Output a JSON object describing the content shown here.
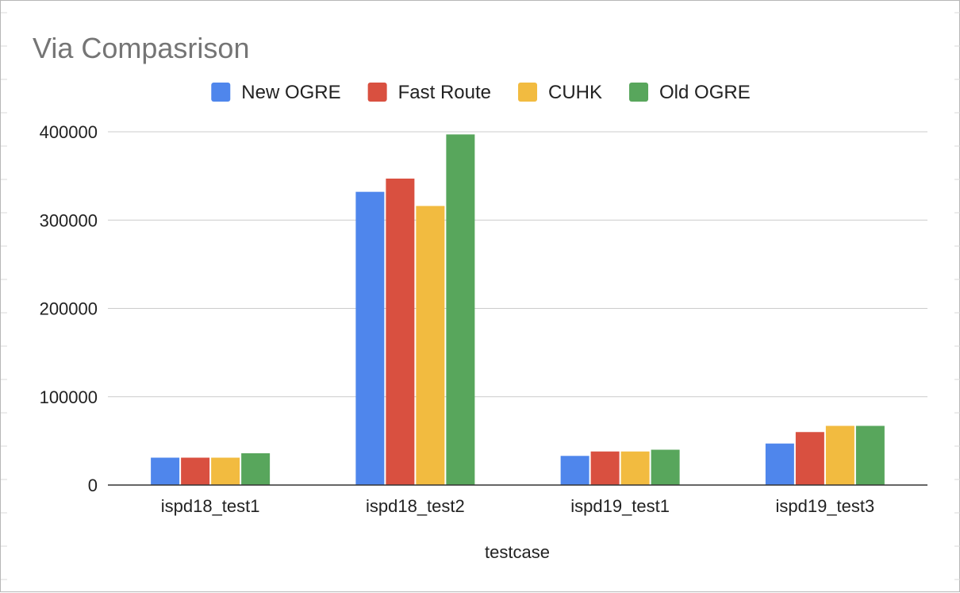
{
  "chart_data": {
    "type": "bar",
    "title": "Via Compasrison",
    "xlabel": "testcase",
    "ylabel": "",
    "categories": [
      "ispd18_test1",
      "ispd18_test2",
      "ispd19_test1",
      "ispd19_test3"
    ],
    "series": [
      {
        "name": "New OGRE",
        "color": "#4f86ec",
        "values": [
          31000,
          332000,
          33000,
          47000
        ]
      },
      {
        "name": "Fast Route",
        "color": "#d95040",
        "values": [
          31000,
          347000,
          38000,
          60000
        ]
      },
      {
        "name": "CUHK",
        "color": "#f2bb40",
        "values": [
          31000,
          316000,
          38000,
          67000
        ]
      },
      {
        "name": "Old OGRE",
        "color": "#58a65c",
        "values": [
          36000,
          397000,
          40000,
          67000
        ]
      }
    ],
    "ylim": [
      0,
      400000
    ],
    "yticks": [
      0,
      100000,
      200000,
      300000,
      400000
    ],
    "ytick_labels": [
      "0",
      "100000",
      "200000",
      "300000",
      "400000"
    ],
    "grid": true,
    "legend_position": "top-center",
    "colors": {
      "title": "#757575",
      "gridline": "#cccccc",
      "baseline": "#333333",
      "text": "#222222"
    }
  }
}
